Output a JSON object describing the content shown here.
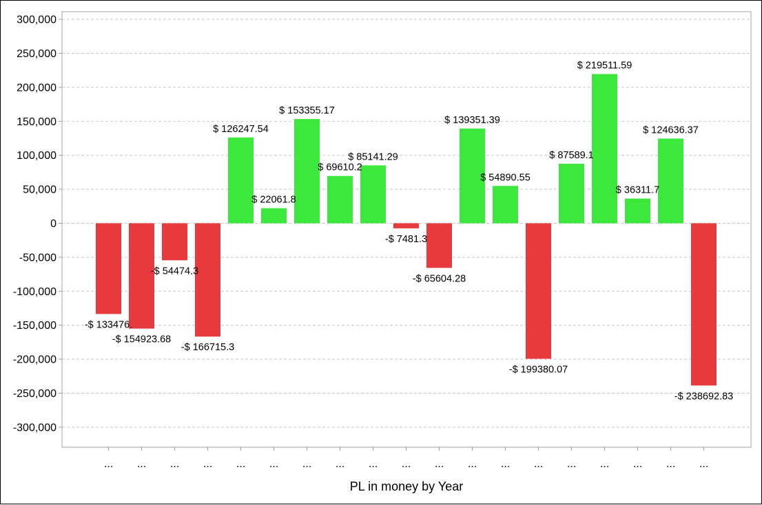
{
  "chart_data": {
    "type": "bar",
    "title": "",
    "xlabel": "PL in money by Year",
    "ylabel": "",
    "ylim": [
      -330000,
      310000
    ],
    "yticks": [
      300000,
      250000,
      200000,
      150000,
      100000,
      50000,
      0,
      -50000,
      -100000,
      -150000,
      -200000,
      -250000,
      -300000
    ],
    "ytick_labels": [
      "300,000",
      "250,000",
      "200,000",
      "150,000",
      "100,000",
      "50,000",
      "0",
      "-50,000",
      "-100,000",
      "-150,000",
      "-200,000",
      "-250,000",
      "-300,000"
    ],
    "grid": true,
    "legend": "none",
    "categories": [
      "...",
      "...",
      "...",
      "...",
      "...",
      "...",
      "...",
      "...",
      "...",
      "...",
      "...",
      "...",
      "...",
      "...",
      "...",
      "...",
      "...",
      "...",
      "..."
    ],
    "values": [
      -133476,
      -154923.68,
      -54474.3,
      -166715.3,
      126247.54,
      22061.8,
      153355.17,
      69610.2,
      85141.29,
      -7481.3,
      -65604.28,
      139351.39,
      54890.55,
      -199380.07,
      87589.1,
      219511.59,
      36311.7,
      124636.37,
      -238692.83
    ],
    "data_labels": [
      "-$ 133476.",
      "-$ 154923.68",
      "-$ 54474.3",
      "-$ 166715.3",
      "$ 126247.54",
      "$ 22061.8",
      "$ 153355.17",
      "$ 69610.2",
      "$ 85141.29",
      "-$ 7481.3",
      "-$ 65604.28",
      "$ 139351.39",
      "$ 54890.55",
      "-$ 199380.07",
      "$ 87589.1",
      "$ 219511.59",
      "$ 36311.7",
      "$ 124636.37",
      "-$ 238692.83"
    ],
    "colors": {
      "positive": "#3ce83c",
      "negative": "#e8393e",
      "grid": "#c8c8c8",
      "axis": "#a0a0a0"
    }
  }
}
